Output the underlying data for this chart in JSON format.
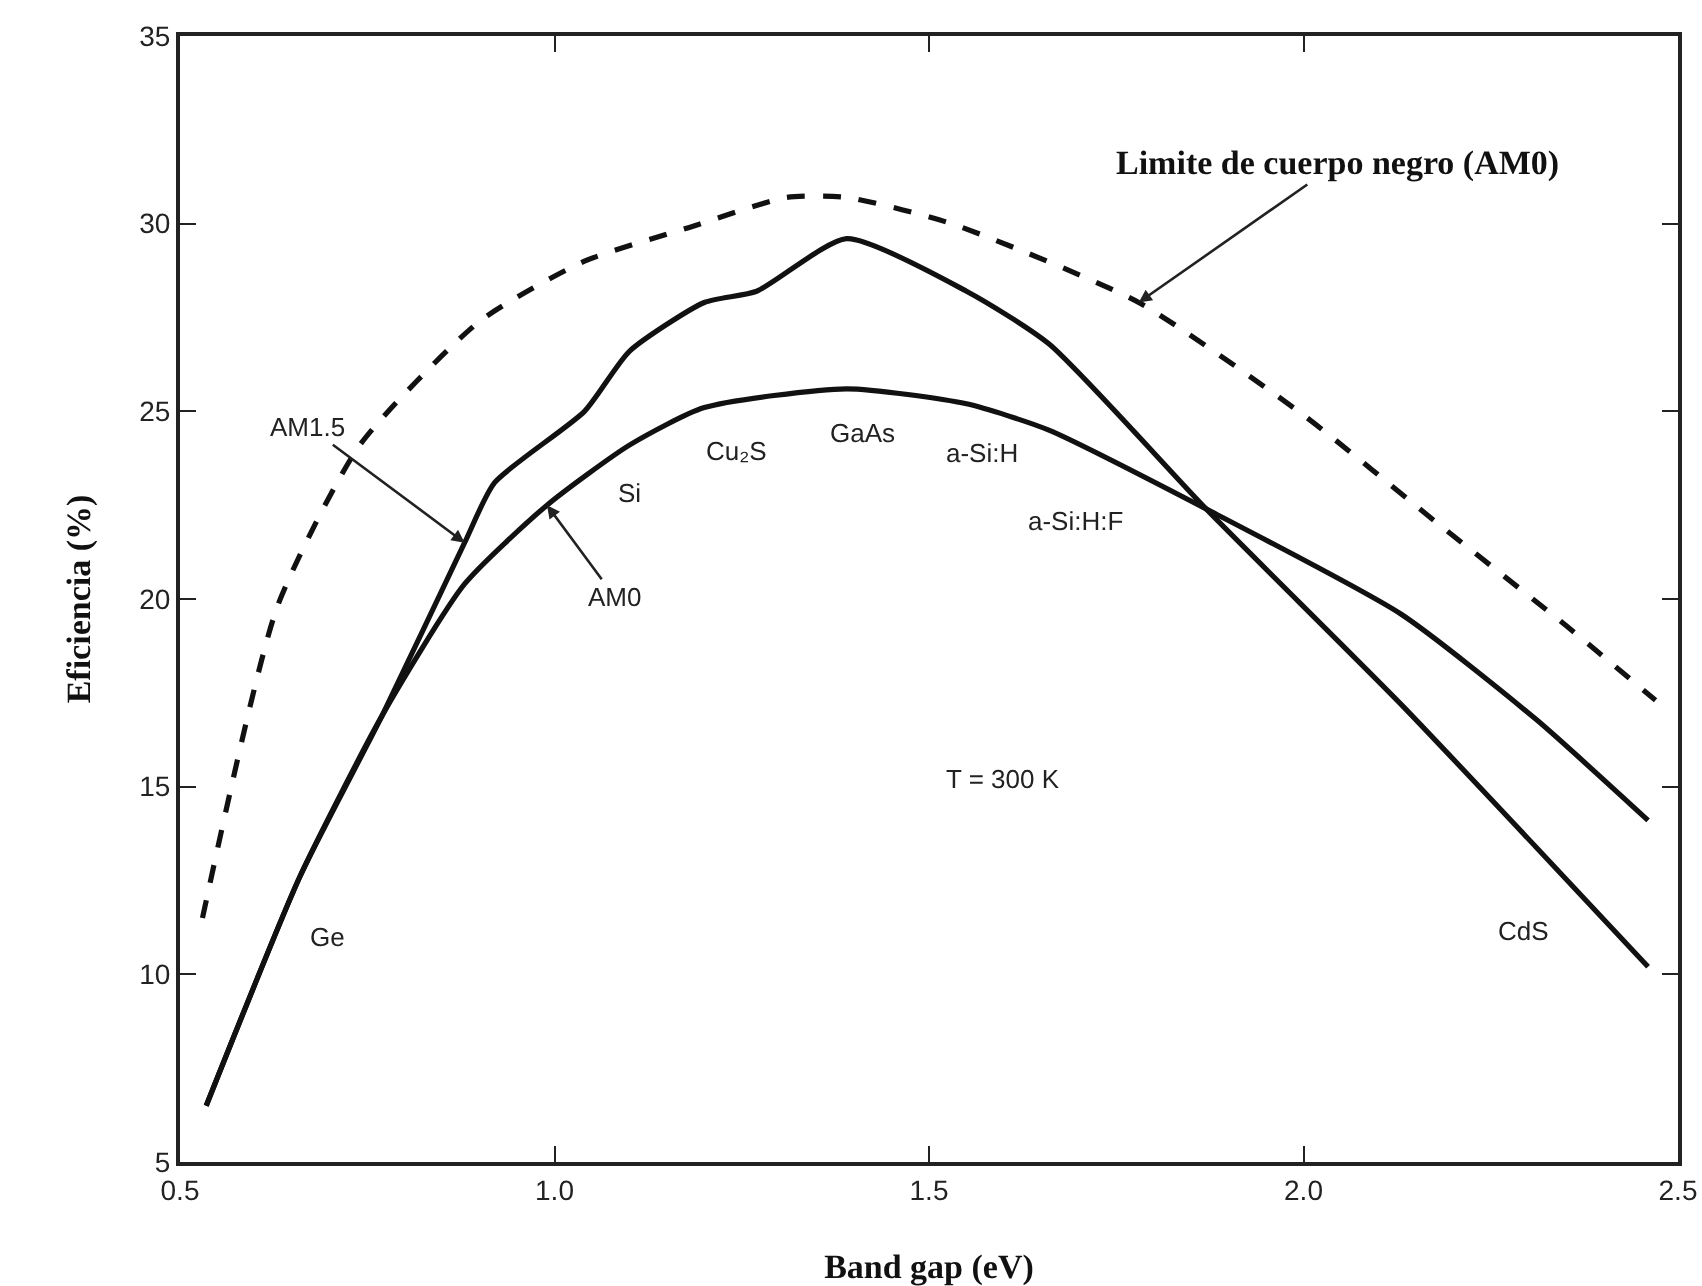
{
  "chart_data": {
    "type": "line",
    "xlabel": "Band gap (eV)",
    "ylabel": "Eficiencia (%)",
    "xlim": [
      0.5,
      2.5
    ],
    "xticks": [
      {
        "value": 0.5,
        "label": "0.5"
      },
      {
        "value": 1,
        "label": "1.0"
      },
      {
        "value": 1.5,
        "label": "1.5"
      },
      {
        "value": 2,
        "label": "2.0"
      },
      {
        "value": 2.5,
        "label": "2.5"
      }
    ],
    "ylim": [
      5,
      35
    ],
    "yticks": [
      5,
      10,
      15,
      20,
      25,
      30,
      35
    ],
    "grid": false,
    "marker": "none",
    "series": [
      {
        "color": "#111111",
        "line_style": "dashed",
        "x": [
          0.53,
          0.63,
          0.74,
          0.9,
          1.04,
          1.18,
          1.31,
          1.39,
          1.53,
          1.78,
          2.0,
          2.18,
          2.35,
          2.47
        ],
        "values": [
          11.5,
          19.8,
          24.1,
          27.4,
          29.0,
          29.9,
          30.7,
          30.7,
          30.0,
          27.9,
          24.9,
          22.0,
          19.3,
          17.3
        ]
      },
      {
        "color": "#111111",
        "line_style": "solid",
        "x": [
          0.535,
          0.66,
          0.77,
          0.88,
          0.92,
          1.04,
          1.1,
          1.2,
          1.27,
          1.39,
          1.55,
          1.66,
          1.87,
          2.13,
          2.31,
          2.46
        ],
        "values": [
          6.5,
          12.6,
          16.9,
          21.5,
          23.1,
          25.0,
          26.6,
          27.9,
          28.2,
          29.6,
          28.2,
          26.8,
          22.4,
          17.2,
          13.4,
          10.2
        ]
      },
      {
        "color": "#111111",
        "line_style": "solid",
        "x": [
          0.535,
          0.66,
          0.77,
          0.88,
          0.99,
          1.1,
          1.2,
          1.39,
          1.55,
          1.66,
          1.87,
          2.13,
          2.31,
          2.46
        ],
        "values": [
          6.5,
          12.6,
          16.9,
          20.4,
          22.5,
          24.1,
          25.1,
          25.6,
          25.2,
          24.5,
          22.4,
          19.6,
          16.8,
          14.1
        ]
      }
    ],
    "annotations": [
      {
        "text": "Limite de cuerpo negro (AM0)",
        "x": 1.78,
        "y": 27.9
      },
      {
        "text": "AM1.5",
        "x": 0.88,
        "y": 21.5
      },
      {
        "text": "AM0",
        "x": 0.99,
        "y": 22.5
      },
      {
        "text": "Ge",
        "x": 0.66,
        "y": 12.6
      },
      {
        "text": "Si",
        "x": 1.1,
        "y": 24.1
      },
      {
        "text": "Cu₂S",
        "x": 1.2,
        "y": 25.1
      },
      {
        "text": "GaAs",
        "x": 1.39,
        "y": 25.6
      },
      {
        "text": "a-Si:H",
        "x": 1.55,
        "y": 25.2
      },
      {
        "text": "a-Si:H:F",
        "x": 1.66,
        "y": 24.5
      },
      {
        "text": "CdS",
        "x": 2.31,
        "y": 13.4
      },
      "T = 300 K"
    ]
  }
}
